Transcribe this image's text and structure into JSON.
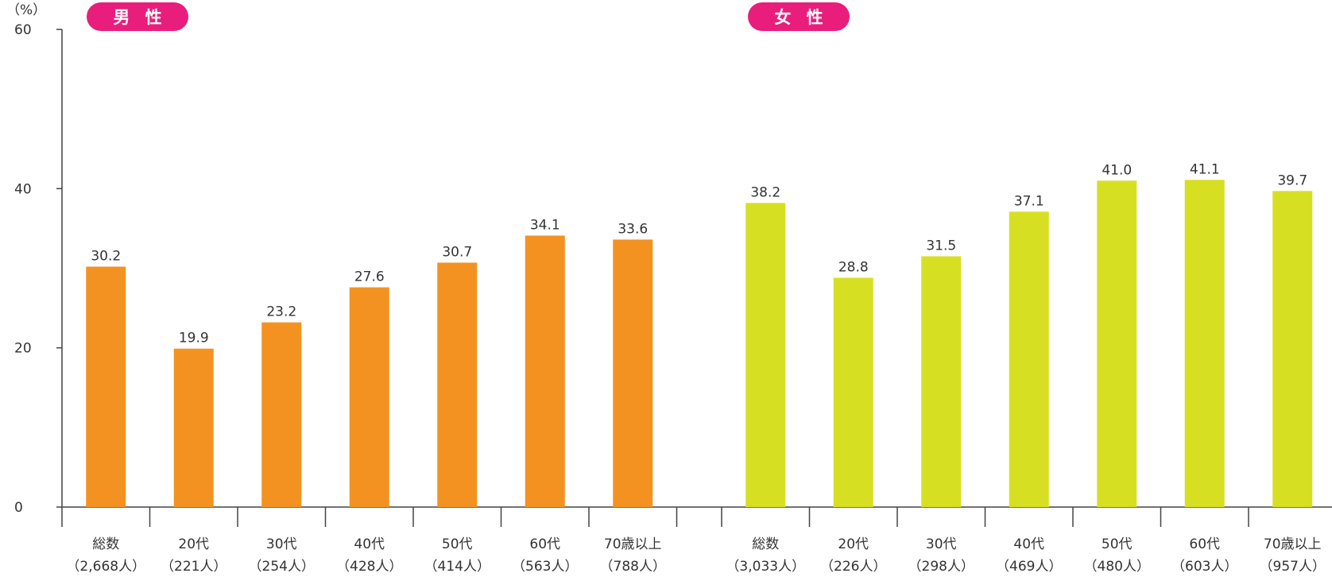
{
  "unit_label": "（%）",
  "chart_data": {
    "type": "bar",
    "ylim": [
      0,
      60
    ],
    "yticks": [
      0,
      20,
      40,
      60
    ],
    "grid": false,
    "groups": [
      {
        "title": "男 性",
        "color": "#f39221",
        "pill_color": "#e91e7c",
        "categories": [
          "総数",
          "20代",
          "30代",
          "40代",
          "50代",
          "60代",
          "70歳以上"
        ],
        "counts": [
          "（2,668人）",
          "（221人）",
          "（254人）",
          "（428人）",
          "（414人）",
          "（563人）",
          "（788人）"
        ],
        "values": [
          30.2,
          19.9,
          23.2,
          27.6,
          30.7,
          34.1,
          33.6
        ]
      },
      {
        "title": "女 性",
        "color": "#d7df23",
        "pill_color": "#e91e7c",
        "categories": [
          "総数",
          "20代",
          "30代",
          "40代",
          "50代",
          "60代",
          "70歳以上"
        ],
        "counts": [
          "（3,033人）",
          "（226人）",
          "（298人）",
          "（469人）",
          "（480人）",
          "（603人）",
          "（957人）"
        ],
        "values": [
          38.2,
          28.8,
          31.5,
          37.1,
          41.0,
          41.1,
          39.7
        ]
      }
    ]
  }
}
